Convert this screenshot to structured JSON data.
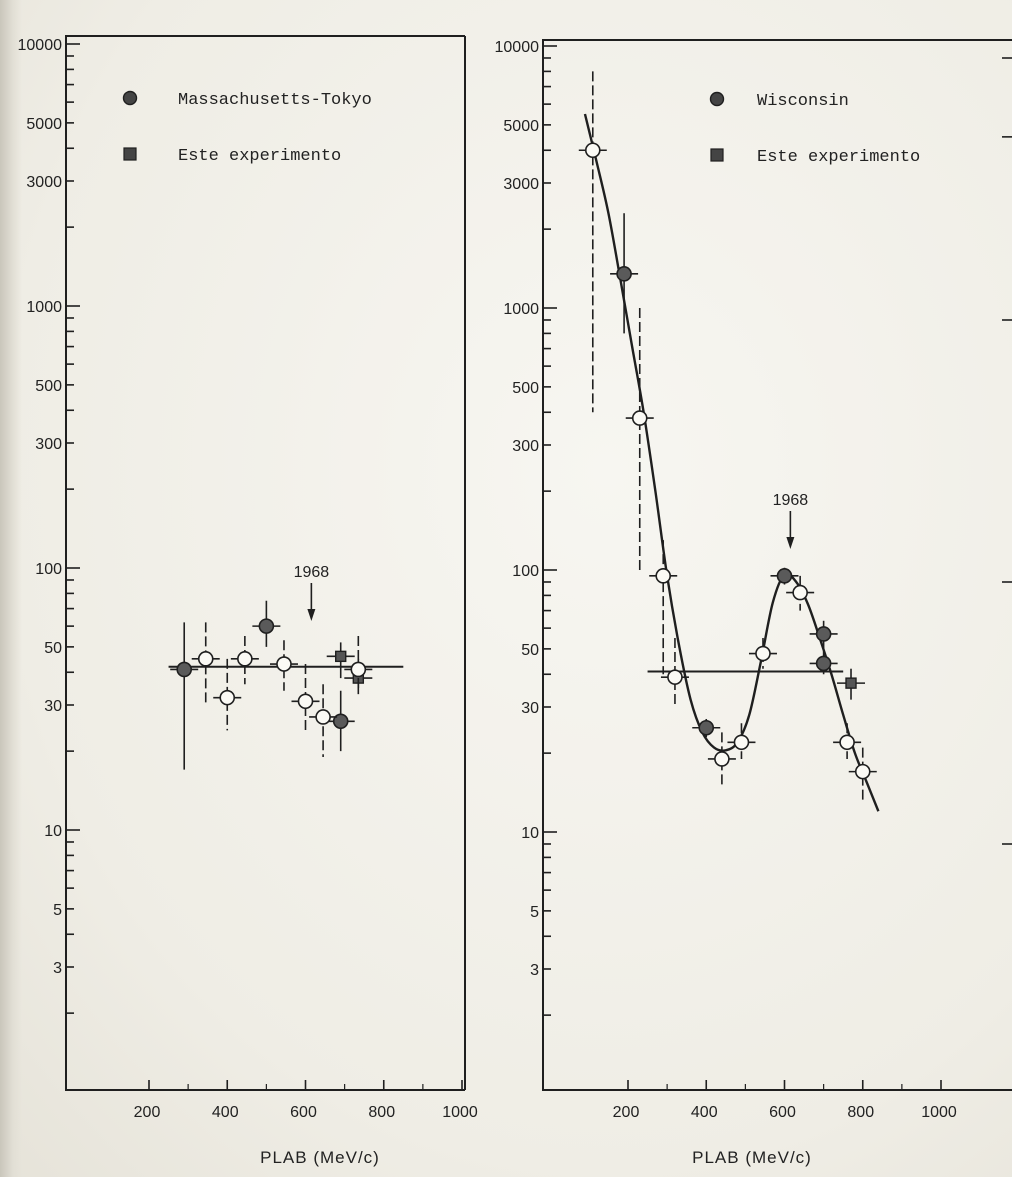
{
  "chart_data": [
    {
      "type": "scatter",
      "title": "",
      "xlabel": "PLAB (MeV/c)",
      "ylabel": "",
      "xlim": [
        0,
        1000
      ],
      "ylim": [
        1,
        10000
      ],
      "yscale": "log",
      "grid": false,
      "legend_position": "top-left",
      "x_ticks": [
        "200",
        "400",
        "600",
        "800",
        "1000"
      ],
      "y_ticks": [
        "10000",
        "5000",
        "3000",
        "1000",
        "500",
        "300",
        "100",
        "50",
        "30",
        "10",
        "5",
        "3"
      ],
      "annotation": {
        "text": "1968",
        "x": 615
      },
      "fit_line": {
        "x": [
          250,
          850
        ],
        "y": [
          42,
          42
        ]
      },
      "series": [
        {
          "name": "Massachusetts-Tokyo",
          "marker": "filled-circle",
          "points": [
            {
              "x": 290,
              "y": 41,
              "ylo": 17,
              "yhi": 62
            },
            {
              "x": 500,
              "y": 60,
              "ylo": 50,
              "yhi": 75
            },
            {
              "x": 690,
              "y": 26,
              "ylo": 20,
              "yhi": 34
            }
          ]
        },
        {
          "name": "Este experimento",
          "marker": "square",
          "points": [
            {
              "x": 690,
              "y": 46,
              "ylo": 38,
              "yhi": 52
            },
            {
              "x": 735,
              "y": 38,
              "ylo": 33,
              "yhi": 45
            }
          ]
        },
        {
          "name": "",
          "marker": "open-circle",
          "points": [
            {
              "x": 345,
              "y": 45,
              "ylo": 30,
              "yhi": 62
            },
            {
              "x": 400,
              "y": 32,
              "ylo": 24,
              "yhi": 45
            },
            {
              "x": 445,
              "y": 45,
              "ylo": 36,
              "yhi": 55
            },
            {
              "x": 545,
              "y": 43,
              "ylo": 34,
              "yhi": 53
            },
            {
              "x": 600,
              "y": 31,
              "ylo": 24,
              "yhi": 43
            },
            {
              "x": 645,
              "y": 27,
              "ylo": 19,
              "yhi": 36
            },
            {
              "x": 735,
              "y": 41,
              "ylo": 34,
              "yhi": 55
            }
          ]
        }
      ]
    },
    {
      "type": "scatter",
      "title": "",
      "xlabel": "PLAB (MeV/c)",
      "ylabel": "",
      "xlim": [
        0,
        1000
      ],
      "ylim": [
        1,
        10000
      ],
      "yscale": "log",
      "grid": false,
      "legend_position": "top-right",
      "x_ticks": [
        "200",
        "400",
        "600",
        "800",
        "1000"
      ],
      "y_ticks": [
        "10000",
        "5000",
        "3000",
        "1000",
        "500",
        "300",
        "100",
        "50",
        "30",
        "10",
        "5",
        "3"
      ],
      "annotation": {
        "text": "1968",
        "x": 615
      },
      "fit_line": {
        "x": [
          250,
          750
        ],
        "y": [
          41,
          41
        ]
      },
      "fit_curve": {
        "x": [
          90,
          120,
          150,
          180,
          210,
          240,
          270,
          300,
          330,
          360,
          390,
          420,
          450,
          480,
          510,
          540,
          570,
          600,
          630,
          660,
          690,
          720,
          750,
          780,
          810,
          840
        ],
        "y": [
          5500,
          3600,
          2300,
          1300,
          720,
          400,
          200,
          95,
          52,
          32,
          24,
          21,
          20.5,
          22,
          28,
          45,
          75,
          96,
          90,
          74,
          55,
          40,
          28,
          20,
          15.5,
          12
        ]
      },
      "series": [
        {
          "name": "Wisconsin",
          "marker": "filled-circle",
          "points": [
            {
              "x": 190,
              "y": 1350,
              "ylo": 800,
              "yhi": 2300
            },
            {
              "x": 400,
              "y": 25,
              "ylo": 23,
              "yhi": 27
            },
            {
              "x": 600,
              "y": 95,
              "ylo": 88,
              "yhi": 102
            },
            {
              "x": 700,
              "y": 57,
              "ylo": 50,
              "yhi": 64
            },
            {
              "x": 700,
              "y": 44,
              "ylo": 40,
              "yhi": 49
            }
          ]
        },
        {
          "name": "Este experimento",
          "marker": "square",
          "points": [
            {
              "x": 770,
              "y": 37,
              "ylo": 32,
              "yhi": 42
            }
          ]
        },
        {
          "name": "",
          "marker": "open-circle",
          "points": [
            {
              "x": 110,
              "y": 4000,
              "ylo": 400,
              "yhi": 8000
            },
            {
              "x": 230,
              "y": 380,
              "ylo": 100,
              "yhi": 1000
            },
            {
              "x": 290,
              "y": 95,
              "ylo": 40,
              "yhi": 130
            },
            {
              "x": 320,
              "y": 39,
              "ylo": 30,
              "yhi": 55
            },
            {
              "x": 440,
              "y": 19,
              "ylo": 15,
              "yhi": 24
            },
            {
              "x": 490,
              "y": 22,
              "ylo": 19,
              "yhi": 26
            },
            {
              "x": 545,
              "y": 48,
              "ylo": 42,
              "yhi": 55
            },
            {
              "x": 640,
              "y": 82,
              "ylo": 70,
              "yhi": 95
            },
            {
              "x": 760,
              "y": 22,
              "ylo": 19,
              "yhi": 26
            },
            {
              "x": 800,
              "y": 17,
              "ylo": 13,
              "yhi": 21
            }
          ]
        }
      ]
    }
  ]
}
